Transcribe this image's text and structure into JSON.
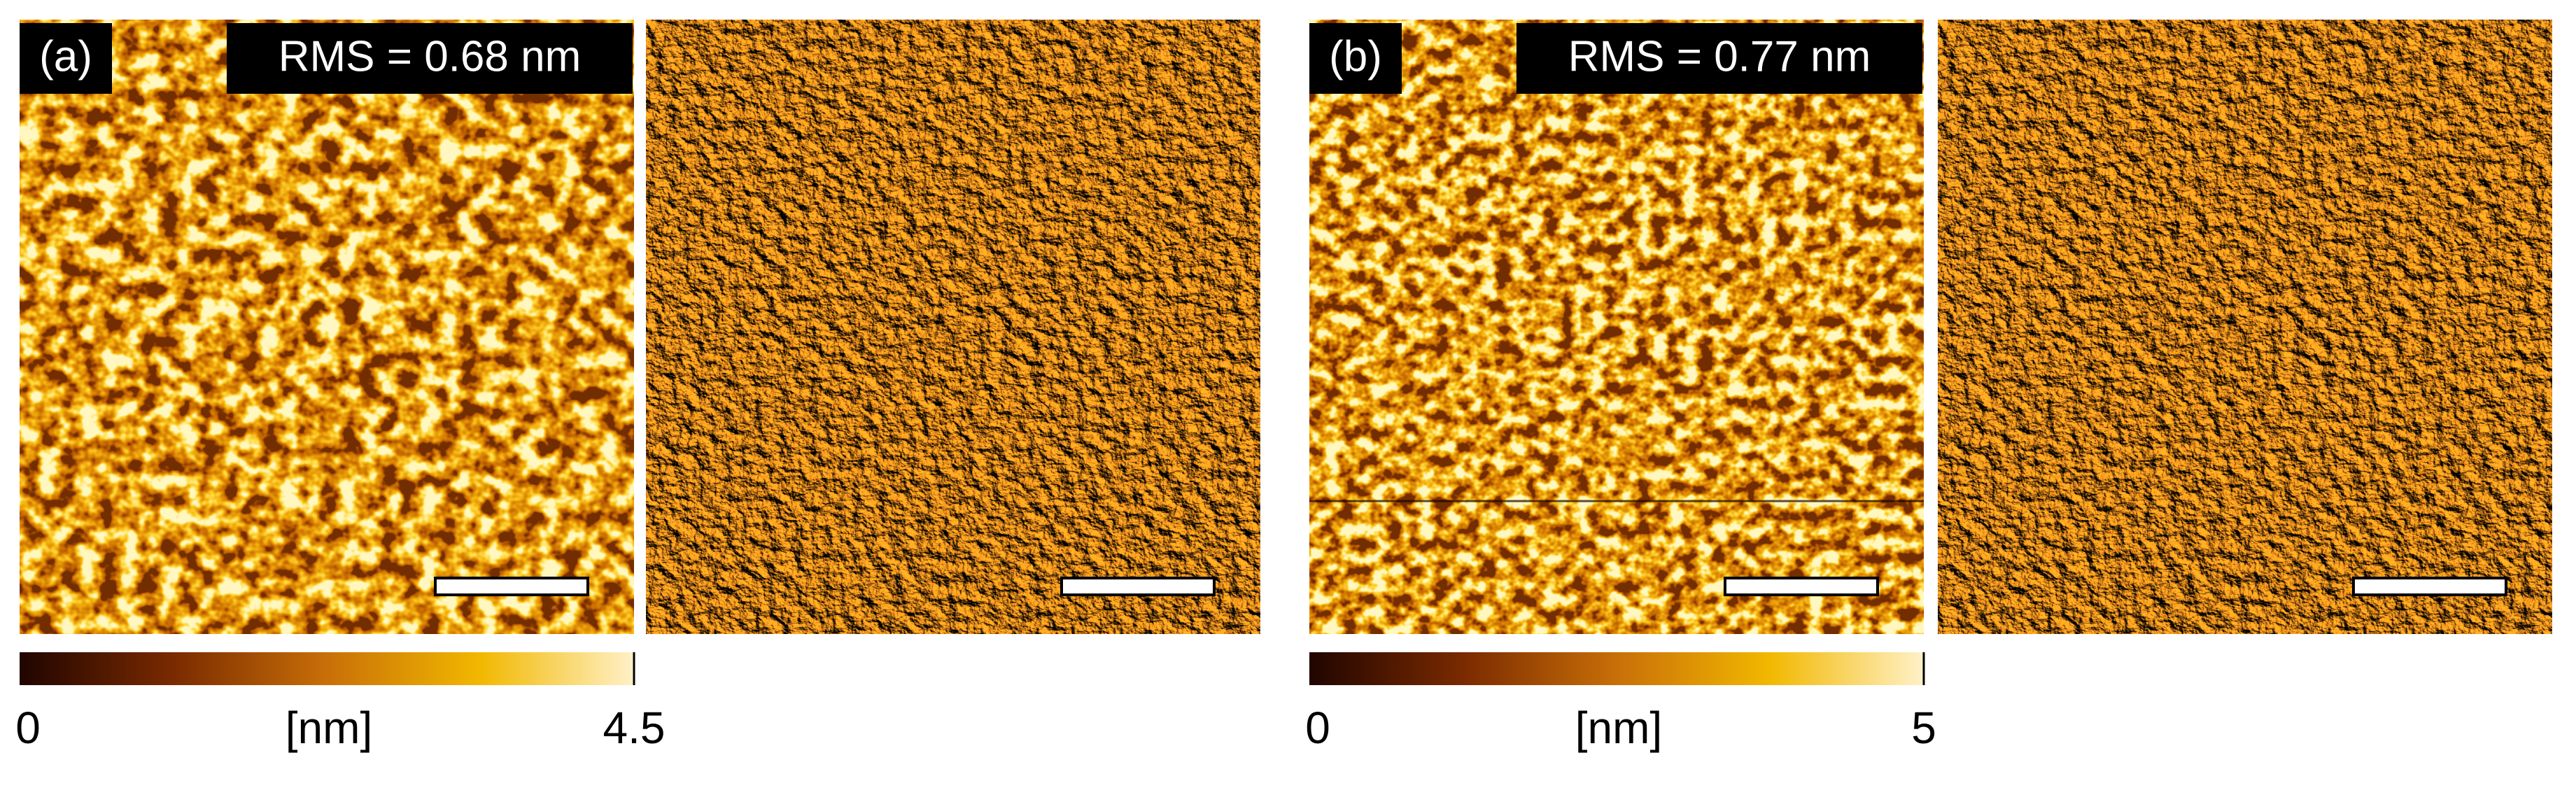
{
  "panels": [
    {
      "label": "(a)",
      "rms": "RMS = 0.68 nm",
      "colorbar": {
        "min": 0,
        "unit": "[nm]",
        "max": 4.5
      }
    },
    {
      "label": "(b)",
      "rms": "RMS = 0.77 nm",
      "colorbar": {
        "min": 0,
        "unit": "[nm]",
        "max": 5
      }
    }
  ]
}
